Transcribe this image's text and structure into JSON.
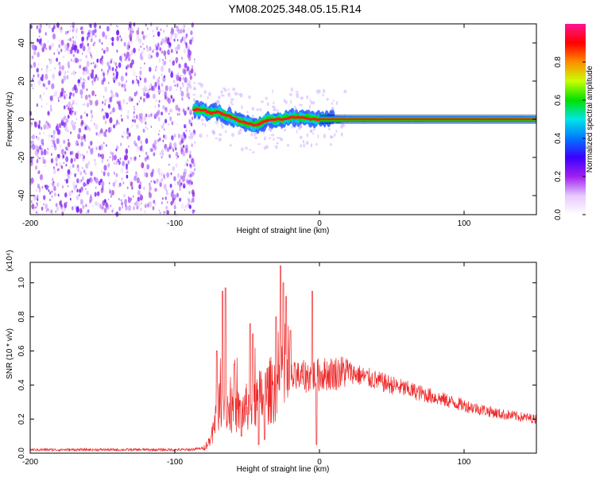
{
  "title": "YM08.2025.348.05.15.R14",
  "chart_data": [
    {
      "type": "heatmap",
      "xlabel": "Height of straight line (km)",
      "ylabel": "Frequency (Hz)",
      "xlim": [
        -200,
        150
      ],
      "ylim": [
        -50,
        50
      ],
      "xticks": [
        "-200",
        "-100",
        "0",
        "100"
      ],
      "yticks": [
        "-40",
        "-20",
        "0",
        "20",
        "40"
      ],
      "colorbar": {
        "label": "Normalized spectral amplitude",
        "range": [
          0,
          1
        ],
        "ticks": [
          "0.0",
          "0.2",
          "0.4",
          "0.6",
          "0.8"
        ],
        "colors": [
          "#ffffff",
          "#e6c8ff",
          "#a020f0",
          "#3c00ff",
          "#0078ff",
          "#00e6e6",
          "#00e000",
          "#c8ff00",
          "#ff8c00",
          "#ff0000",
          "#ff1493"
        ]
      },
      "noise_region_x": [
        -200,
        -86
      ],
      "signal_track": [
        {
          "x": -86,
          "y": 5
        },
        {
          "x": -80,
          "y": 5
        },
        {
          "x": -75,
          "y": 3
        },
        {
          "x": -70,
          "y": 4
        },
        {
          "x": -65,
          "y": 2
        },
        {
          "x": -60,
          "y": 1
        },
        {
          "x": -55,
          "y": -1
        },
        {
          "x": -50,
          "y": -2
        },
        {
          "x": -45,
          "y": -3
        },
        {
          "x": -40,
          "y": -2
        },
        {
          "x": -35,
          "y": 0
        },
        {
          "x": -30,
          "y": 0
        },
        {
          "x": -25,
          "y": 0
        },
        {
          "x": -20,
          "y": 1
        },
        {
          "x": -15,
          "y": 1
        },
        {
          "x": -10,
          "y": 1
        },
        {
          "x": -5,
          "y": 0
        },
        {
          "x": 0,
          "y": 0
        },
        {
          "x": 10,
          "y": 0
        },
        {
          "x": 150,
          "y": 0
        }
      ]
    },
    {
      "type": "line",
      "xlabel": "Height of straight line (km)",
      "ylabel": "SNR (10 * v/v)",
      "yscale_label": "(x10⁴)",
      "xlim": [
        -200,
        150
      ],
      "ylim": [
        0,
        1.12
      ],
      "xticks": [
        "-200",
        "-100",
        "0",
        "100"
      ],
      "yticks": [
        "0.0",
        "0.2",
        "0.4",
        "0.6",
        "0.8",
        "1.0"
      ],
      "color": "#ee2a2a",
      "envelope": [
        {
          "x": -200,
          "y": 0.02
        },
        {
          "x": -90,
          "y": 0.02
        },
        {
          "x": -80,
          "y": 0.03
        },
        {
          "x": -75,
          "y": 0.08
        },
        {
          "x": -72,
          "y": 0.22
        },
        {
          "x": -68,
          "y": 0.32
        },
        {
          "x": -62,
          "y": 0.25
        },
        {
          "x": -55,
          "y": 0.24
        },
        {
          "x": -48,
          "y": 0.28
        },
        {
          "x": -40,
          "y": 0.33
        },
        {
          "x": -32,
          "y": 0.38
        },
        {
          "x": -25,
          "y": 0.42
        },
        {
          "x": -18,
          "y": 0.44
        },
        {
          "x": -10,
          "y": 0.45
        },
        {
          "x": 0,
          "y": 0.46
        },
        {
          "x": 10,
          "y": 0.47
        },
        {
          "x": 20,
          "y": 0.48
        },
        {
          "x": 30,
          "y": 0.45
        },
        {
          "x": 50,
          "y": 0.4
        },
        {
          "x": 75,
          "y": 0.34
        },
        {
          "x": 100,
          "y": 0.28
        },
        {
          "x": 125,
          "y": 0.23
        },
        {
          "x": 150,
          "y": 0.2
        }
      ],
      "peaks": [
        {
          "x": -67,
          "y": 0.95
        },
        {
          "x": -65,
          "y": 0.97
        },
        {
          "x": -71,
          "y": 0.6
        },
        {
          "x": -59,
          "y": 0.52
        },
        {
          "x": -48,
          "y": 0.76
        },
        {
          "x": -46,
          "y": 0.7
        },
        {
          "x": -30,
          "y": 0.8
        },
        {
          "x": -27,
          "y": 1.1
        },
        {
          "x": -25,
          "y": 1.0
        },
        {
          "x": -23,
          "y": 0.92
        },
        {
          "x": -5,
          "y": 0.95
        },
        {
          "x": -20,
          "y": 0.72
        }
      ],
      "dips": [
        {
          "x": -42,
          "y": 0.05
        },
        {
          "x": -38,
          "y": 0.08
        },
        {
          "x": -2,
          "y": 0.05
        },
        {
          "x": -54,
          "y": 0.1
        }
      ]
    }
  ]
}
